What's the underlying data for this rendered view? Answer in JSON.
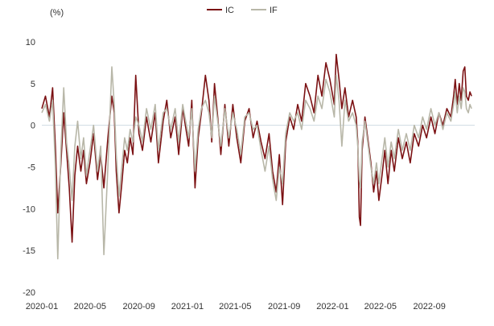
{
  "chart_data": {
    "type": "line",
    "unit_label": "(%)",
    "xlabel": "",
    "ylabel": "",
    "ylim": [
      -20,
      10
    ],
    "yticks": [
      10,
      5,
      0,
      -5,
      -10,
      -15,
      -20
    ],
    "xlim": [
      "2020-01",
      "2023-01"
    ],
    "xticks": [
      "2020-01",
      "2020-05",
      "2020-09",
      "2021-01",
      "2021-05",
      "2021-09",
      "2022-01",
      "2022-05",
      "2022-09"
    ],
    "grid": false,
    "zero_line": true,
    "legend_position": "top-center",
    "series": [
      {
        "name": "IC",
        "color": "#7b1113",
        "points": [
          [
            "2020-01",
            2.0
          ],
          [
            "2020-01-10",
            3.5
          ],
          [
            "2020-01-20",
            1.0
          ],
          [
            "2020-01-28",
            4.5
          ],
          [
            "2020-02-04",
            -2.5
          ],
          [
            "2020-02-10",
            -10.5
          ],
          [
            "2020-02-18",
            -4.5
          ],
          [
            "2020-02-25",
            1.5
          ],
          [
            "2020-03-03",
            -3.0
          ],
          [
            "2020-03-10",
            -7.5
          ],
          [
            "2020-03-17",
            -14.0
          ],
          [
            "2020-03-24",
            -6.0
          ],
          [
            "2020-03-31",
            -2.5
          ],
          [
            "2020-04-08",
            -5.5
          ],
          [
            "2020-04-15",
            -3.0
          ],
          [
            "2020-04-22",
            -7.0
          ],
          [
            "2020-05-01",
            -4.5
          ],
          [
            "2020-05-10",
            -1.0
          ],
          [
            "2020-05-20",
            -6.5
          ],
          [
            "2020-05-28",
            -3.5
          ],
          [
            "2020-06-05",
            -7.5
          ],
          [
            "2020-06-15",
            -1.5
          ],
          [
            "2020-06-25",
            3.5
          ],
          [
            "2020-07-01",
            1.5
          ],
          [
            "2020-07-06",
            -5.5
          ],
          [
            "2020-07-13",
            -10.5
          ],
          [
            "2020-07-20",
            -7.0
          ],
          [
            "2020-07-27",
            -3.0
          ],
          [
            "2020-08-03",
            -4.5
          ],
          [
            "2020-08-10",
            -1.5
          ],
          [
            "2020-08-17",
            -3.5
          ],
          [
            "2020-08-24",
            6.0
          ],
          [
            "2020-09-01",
            -1.0
          ],
          [
            "2020-09-10",
            -3.0
          ],
          [
            "2020-09-20",
            1.0
          ],
          [
            "2020-10-01",
            -2.0
          ],
          [
            "2020-10-12",
            1.5
          ],
          [
            "2020-10-20",
            -4.5
          ],
          [
            "2020-11-01",
            0.5
          ],
          [
            "2020-11-10",
            3.0
          ],
          [
            "2020-11-20",
            -1.5
          ],
          [
            "2020-12-01",
            1.0
          ],
          [
            "2020-12-10",
            -3.5
          ],
          [
            "2020-12-20",
            2.0
          ],
          [
            "2021-01-04",
            -2.5
          ],
          [
            "2021-01-12",
            3.0
          ],
          [
            "2021-01-20",
            -7.5
          ],
          [
            "2021-01-28",
            -1.5
          ],
          [
            "2021-02-05",
            1.5
          ],
          [
            "2021-02-15",
            6.0
          ],
          [
            "2021-02-24",
            3.0
          ],
          [
            "2021-03-03",
            -2.0
          ],
          [
            "2021-03-10",
            5.0
          ],
          [
            "2021-03-18",
            1.0
          ],
          [
            "2021-03-26",
            -3.5
          ],
          [
            "2021-04-05",
            2.5
          ],
          [
            "2021-04-15",
            -2.5
          ],
          [
            "2021-04-25",
            2.5
          ],
          [
            "2021-05-05",
            -1.5
          ],
          [
            "2021-05-15",
            -4.5
          ],
          [
            "2021-05-25",
            0.5
          ],
          [
            "2021-06-05",
            2.0
          ],
          [
            "2021-06-15",
            -1.5
          ],
          [
            "2021-06-25",
            0.5
          ],
          [
            "2021-07-05",
            -2.0
          ],
          [
            "2021-07-15",
            -4.0
          ],
          [
            "2021-07-25",
            -1.0
          ],
          [
            "2021-08-03",
            -5.5
          ],
          [
            "2021-08-12",
            -8.0
          ],
          [
            "2021-08-20",
            -3.5
          ],
          [
            "2021-08-28",
            -9.5
          ],
          [
            "2021-09-05",
            -2.0
          ],
          [
            "2021-09-15",
            1.0
          ],
          [
            "2021-09-25",
            -0.5
          ],
          [
            "2021-10-05",
            2.5
          ],
          [
            "2021-10-15",
            0.5
          ],
          [
            "2021-10-25",
            5.0
          ],
          [
            "2021-11-05",
            3.5
          ],
          [
            "2021-11-15",
            1.5
          ],
          [
            "2021-11-25",
            6.0
          ],
          [
            "2021-12-05",
            3.5
          ],
          [
            "2021-12-15",
            7.5
          ],
          [
            "2021-12-25",
            5.5
          ],
          [
            "2022-01-05",
            2.5
          ],
          [
            "2022-01-10",
            8.5
          ],
          [
            "2022-01-17",
            5.5
          ],
          [
            "2022-01-24",
            2.0
          ],
          [
            "2022-02-01",
            4.5
          ],
          [
            "2022-02-10",
            1.0
          ],
          [
            "2022-02-20",
            3.0
          ],
          [
            "2022-03-01",
            1.0
          ],
          [
            "2022-03-05",
            -2.0
          ],
          [
            "2022-03-09",
            -11.0
          ],
          [
            "2022-03-12",
            -12.0
          ],
          [
            "2022-03-16",
            -3.0
          ],
          [
            "2022-03-23",
            1.0
          ],
          [
            "2022-03-30",
            -1.5
          ],
          [
            "2022-04-07",
            -4.5
          ],
          [
            "2022-04-14",
            -8.0
          ],
          [
            "2022-04-21",
            -5.5
          ],
          [
            "2022-04-27",
            -9.0
          ],
          [
            "2022-05-05",
            -6.0
          ],
          [
            "2022-05-12",
            -3.0
          ],
          [
            "2022-05-20",
            -7.0
          ],
          [
            "2022-05-28",
            -3.0
          ],
          [
            "2022-06-05",
            -5.5
          ],
          [
            "2022-06-15",
            -1.5
          ],
          [
            "2022-06-25",
            -4.0
          ],
          [
            "2022-07-05",
            -2.0
          ],
          [
            "2022-07-15",
            -4.5
          ],
          [
            "2022-07-25",
            -1.0
          ],
          [
            "2022-08-05",
            -2.5
          ],
          [
            "2022-08-15",
            0.0
          ],
          [
            "2022-08-25",
            -1.5
          ],
          [
            "2022-09-05",
            1.0
          ],
          [
            "2022-09-15",
            -1.0
          ],
          [
            "2022-09-25",
            1.5
          ],
          [
            "2022-10-05",
            0.0
          ],
          [
            "2022-10-15",
            2.0
          ],
          [
            "2022-10-25",
            1.0
          ],
          [
            "2022-11-01",
            3.5
          ],
          [
            "2022-11-05",
            5.5
          ],
          [
            "2022-11-10",
            2.5
          ],
          [
            "2022-11-15",
            5.0
          ],
          [
            "2022-11-20",
            3.0
          ],
          [
            "2022-11-25",
            6.5
          ],
          [
            "2022-11-29",
            7.0
          ],
          [
            "2022-12-03",
            3.5
          ],
          [
            "2022-12-08",
            3.0
          ],
          [
            "2022-12-12",
            4.0
          ],
          [
            "2022-12-16",
            3.5
          ]
        ]
      },
      {
        "name": "IF",
        "color": "#b8b7a8",
        "points": [
          [
            "2020-01",
            1.5
          ],
          [
            "2020-01-10",
            2.5
          ],
          [
            "2020-01-20",
            0.5
          ],
          [
            "2020-01-28",
            3.0
          ],
          [
            "2020-02-04",
            -5.0
          ],
          [
            "2020-02-10",
            -16.0
          ],
          [
            "2020-02-18",
            -3.0
          ],
          [
            "2020-02-25",
            4.5
          ],
          [
            "2020-03-03",
            -2.0
          ],
          [
            "2020-03-10",
            -5.0
          ],
          [
            "2020-03-17",
            -9.0
          ],
          [
            "2020-03-24",
            -2.5
          ],
          [
            "2020-03-31",
            0.5
          ],
          [
            "2020-04-08",
            -4.0
          ],
          [
            "2020-04-15",
            -1.5
          ],
          [
            "2020-04-22",
            -6.0
          ],
          [
            "2020-05-01",
            -3.0
          ],
          [
            "2020-05-10",
            0.0
          ],
          [
            "2020-05-20",
            -5.5
          ],
          [
            "2020-05-28",
            -2.5
          ],
          [
            "2020-06-05",
            -15.5
          ],
          [
            "2020-06-15",
            -5.0
          ],
          [
            "2020-06-25",
            7.0
          ],
          [
            "2020-07-01",
            2.5
          ],
          [
            "2020-07-06",
            -3.5
          ],
          [
            "2020-07-13",
            -8.5
          ],
          [
            "2020-07-20",
            -5.0
          ],
          [
            "2020-07-27",
            -1.5
          ],
          [
            "2020-08-03",
            -3.0
          ],
          [
            "2020-08-10",
            -0.5
          ],
          [
            "2020-08-17",
            -2.0
          ],
          [
            "2020-08-24",
            1.0
          ],
          [
            "2020-09-01",
            0.0
          ],
          [
            "2020-09-10",
            -2.0
          ],
          [
            "2020-09-20",
            2.0
          ],
          [
            "2020-10-01",
            -0.5
          ],
          [
            "2020-10-12",
            2.5
          ],
          [
            "2020-10-20",
            -3.0
          ],
          [
            "2020-11-01",
            1.5
          ],
          [
            "2020-11-10",
            2.0
          ],
          [
            "2020-11-20",
            -0.5
          ],
          [
            "2020-12-01",
            2.0
          ],
          [
            "2020-12-10",
            -2.0
          ],
          [
            "2020-12-20",
            2.5
          ],
          [
            "2021-01-04",
            -1.5
          ],
          [
            "2021-01-12",
            2.0
          ],
          [
            "2021-01-20",
            -5.5
          ],
          [
            "2021-01-28",
            -0.5
          ],
          [
            "2021-02-05",
            2.0
          ],
          [
            "2021-02-15",
            3.0
          ],
          [
            "2021-02-24",
            1.5
          ],
          [
            "2021-03-03",
            -1.5
          ],
          [
            "2021-03-10",
            3.5
          ],
          [
            "2021-03-18",
            0.5
          ],
          [
            "2021-03-26",
            -2.5
          ],
          [
            "2021-04-05",
            2.0
          ],
          [
            "2021-04-15",
            -1.5
          ],
          [
            "2021-04-25",
            1.5
          ],
          [
            "2021-05-05",
            -0.5
          ],
          [
            "2021-05-15",
            -3.5
          ],
          [
            "2021-05-25",
            1.0
          ],
          [
            "2021-06-05",
            1.5
          ],
          [
            "2021-06-15",
            -0.5
          ],
          [
            "2021-06-25",
            0.0
          ],
          [
            "2021-07-05",
            -3.0
          ],
          [
            "2021-07-15",
            -5.5
          ],
          [
            "2021-07-25",
            -2.5
          ],
          [
            "2021-08-03",
            -6.5
          ],
          [
            "2021-08-12",
            -9.0
          ],
          [
            "2021-08-20",
            -5.0
          ],
          [
            "2021-08-28",
            -7.0
          ],
          [
            "2021-09-05",
            -1.0
          ],
          [
            "2021-09-15",
            1.5
          ],
          [
            "2021-09-25",
            0.5
          ],
          [
            "2021-10-05",
            1.5
          ],
          [
            "2021-10-15",
            -0.5
          ],
          [
            "2021-10-25",
            3.0
          ],
          [
            "2021-11-05",
            2.0
          ],
          [
            "2021-11-15",
            0.5
          ],
          [
            "2021-11-25",
            3.5
          ],
          [
            "2021-12-05",
            2.0
          ],
          [
            "2021-12-15",
            5.5
          ],
          [
            "2021-12-25",
            4.0
          ],
          [
            "2022-01-05",
            1.0
          ],
          [
            "2022-01-10",
            6.0
          ],
          [
            "2022-01-17",
            3.0
          ],
          [
            "2022-01-24",
            -2.5
          ],
          [
            "2022-02-01",
            3.0
          ],
          [
            "2022-02-10",
            0.5
          ],
          [
            "2022-02-20",
            1.5
          ],
          [
            "2022-03-01",
            0.0
          ],
          [
            "2022-03-05",
            -2.5
          ],
          [
            "2022-03-09",
            -6.5
          ],
          [
            "2022-03-12",
            -7.5
          ],
          [
            "2022-03-16",
            -2.0
          ],
          [
            "2022-03-23",
            0.5
          ],
          [
            "2022-03-30",
            -2.0
          ],
          [
            "2022-04-07",
            -5.0
          ],
          [
            "2022-04-14",
            -7.0
          ],
          [
            "2022-04-21",
            -4.5
          ],
          [
            "2022-04-27",
            -7.0
          ],
          [
            "2022-05-05",
            -4.0
          ],
          [
            "2022-05-12",
            -1.5
          ],
          [
            "2022-05-20",
            -5.0
          ],
          [
            "2022-05-28",
            -2.0
          ],
          [
            "2022-06-05",
            -4.0
          ],
          [
            "2022-06-15",
            -0.5
          ],
          [
            "2022-06-25",
            -3.0
          ],
          [
            "2022-07-05",
            -1.0
          ],
          [
            "2022-07-15",
            -3.0
          ],
          [
            "2022-07-25",
            0.0
          ],
          [
            "2022-08-05",
            -1.5
          ],
          [
            "2022-08-15",
            1.0
          ],
          [
            "2022-08-25",
            -0.5
          ],
          [
            "2022-09-05",
            2.0
          ],
          [
            "2022-09-15",
            0.0
          ],
          [
            "2022-09-25",
            1.5
          ],
          [
            "2022-10-05",
            -0.5
          ],
          [
            "2022-10-15",
            1.5
          ],
          [
            "2022-10-25",
            0.5
          ],
          [
            "2022-11-01",
            2.5
          ],
          [
            "2022-11-05",
            4.0
          ],
          [
            "2022-11-10",
            1.5
          ],
          [
            "2022-11-15",
            3.5
          ],
          [
            "2022-11-20",
            2.0
          ],
          [
            "2022-11-25",
            4.5
          ],
          [
            "2022-11-29",
            4.0
          ],
          [
            "2022-12-03",
            2.0
          ],
          [
            "2022-12-08",
            1.5
          ],
          [
            "2022-12-12",
            2.5
          ],
          [
            "2022-12-16",
            2.0
          ]
        ]
      }
    ]
  }
}
